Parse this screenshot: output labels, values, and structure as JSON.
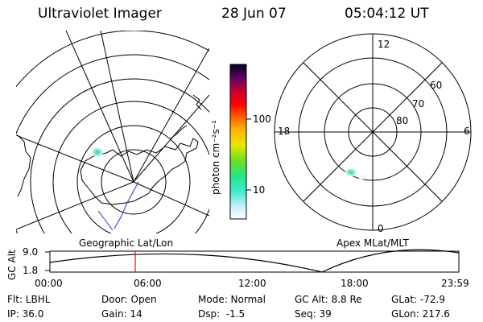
{
  "header": {
    "instrument": "Ultraviolet Imager",
    "date": "28 Jun 07",
    "time": "05:04:12 UT"
  },
  "colorbar": {
    "unit_label": "photon cm⁻²s⁻¹",
    "tick_labels": [
      "100",
      "10"
    ]
  },
  "right_plot": {
    "lat_labels": [
      "60",
      "70",
      "80"
    ],
    "mlt_labels": [
      "12",
      "18",
      "6",
      "0"
    ]
  },
  "timeline": {
    "left_title": "Geographic Lat/Lon",
    "right_title": "Apex MLat/MLT",
    "y_axis_label": "GC Alt",
    "y_ticks": [
      "9.0",
      "1.8"
    ],
    "x_ticks": [
      "00:00",
      "06:00",
      "12:00",
      "18:00",
      "23:59"
    ],
    "marker_time": "05:04"
  },
  "footer": {
    "row1": [
      "Flt: LBHL",
      "Door: Open",
      "Mode: Normal",
      "GC Alt: 8.8 Re",
      "GLat: -72.9"
    ],
    "row2": [
      "IP: 36.0",
      "Gain: 14",
      "Dsp:  -1.5",
      "Seq: 39",
      "GLon: 217.6"
    ]
  },
  "colors": {
    "background": "#ffffff",
    "lines": "#000000",
    "marker": "#ff0000",
    "aurora": "#00e0c0",
    "track": "#3030c0"
  }
}
